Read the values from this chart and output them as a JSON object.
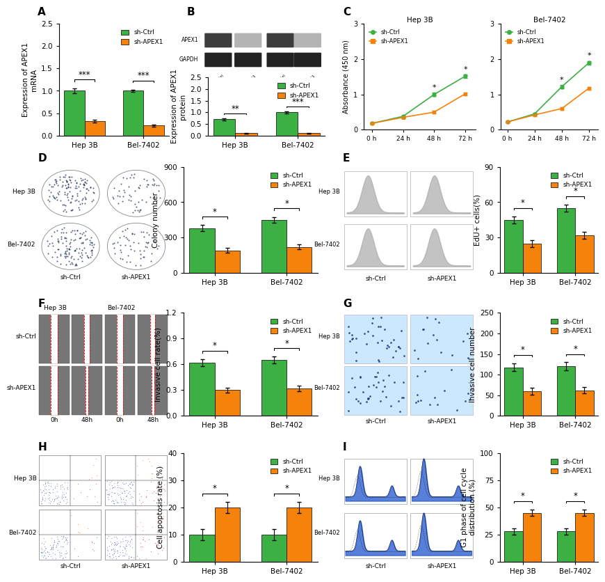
{
  "panel_A": {
    "ylabel": "Expression of APEX1\nmRNA",
    "groups": [
      "Hep 3B",
      "Bel-7402"
    ],
    "ctrl_vals": [
      1.0,
      1.0
    ],
    "apex1_vals": [
      0.32,
      0.22
    ],
    "ctrl_err": [
      0.05,
      0.03
    ],
    "apex1_err": [
      0.03,
      0.02
    ],
    "ylim": [
      0,
      2.5
    ],
    "yticks": [
      0.0,
      0.5,
      1.0,
      1.5,
      2.0,
      2.5
    ],
    "sig": [
      "***",
      "***"
    ]
  },
  "panel_B": {
    "ylabel": "Expression of APEX1\nprotein",
    "groups": [
      "Hep 3B",
      "Bel-7402"
    ],
    "ctrl_vals": [
      0.7,
      1.0
    ],
    "apex1_vals": [
      0.1,
      0.1
    ],
    "ctrl_err": [
      0.05,
      0.04
    ],
    "apex1_err": [
      0.02,
      0.02
    ],
    "ylim": [
      0,
      2.5
    ],
    "yticks": [
      0.0,
      0.5,
      1.0,
      1.5,
      2.0,
      2.5
    ],
    "sig": [
      "**",
      "***"
    ]
  },
  "panel_C_hep": {
    "title": "Hep 3B",
    "ylabel": "Absorbance (450 nm)",
    "timepoints": [
      0,
      24,
      48,
      72
    ],
    "ctrl_vals": [
      0.18,
      0.38,
      1.0,
      1.52
    ],
    "apex1_vals": [
      0.18,
      0.35,
      0.5,
      1.02
    ],
    "ctrl_err": [
      0.02,
      0.03,
      0.05,
      0.05
    ],
    "apex1_err": [
      0.02,
      0.03,
      0.04,
      0.04
    ],
    "ylim": [
      0,
      3
    ],
    "yticks": [
      0,
      1,
      2,
      3
    ],
    "sig_points": [
      48,
      72
    ],
    "sig_labels": [
      "*",
      "*"
    ]
  },
  "panel_C_bel": {
    "title": "Bel-7402",
    "ylabel": "Absorbance (450 nm)",
    "timepoints": [
      0,
      24,
      48,
      72
    ],
    "ctrl_vals": [
      0.22,
      0.45,
      1.22,
      1.9
    ],
    "apex1_vals": [
      0.22,
      0.42,
      0.6,
      1.18
    ],
    "ctrl_err": [
      0.02,
      0.03,
      0.05,
      0.05
    ],
    "apex1_err": [
      0.02,
      0.03,
      0.04,
      0.04
    ],
    "ylim": [
      0,
      3
    ],
    "yticks": [
      0,
      1,
      2,
      3
    ],
    "sig_points": [
      48,
      72
    ],
    "sig_labels": [
      "*",
      "*"
    ]
  },
  "panel_D": {
    "ylabel": "Colony number",
    "groups": [
      "Hep 3B",
      "Bel-7402"
    ],
    "ctrl_vals": [
      380,
      450
    ],
    "apex1_vals": [
      190,
      220
    ],
    "ctrl_err": [
      25,
      25
    ],
    "apex1_err": [
      20,
      20
    ],
    "ylim": [
      0,
      900
    ],
    "yticks": [
      0,
      300,
      600,
      900
    ],
    "sig": [
      "*",
      "*"
    ]
  },
  "panel_E": {
    "ylabel": "EdU+ cells(%)",
    "groups": [
      "Hep 3B",
      "Bel-7402"
    ],
    "ctrl_vals": [
      45,
      55
    ],
    "apex1_vals": [
      25,
      32
    ],
    "ctrl_err": [
      3,
      3
    ],
    "apex1_err": [
      3,
      3
    ],
    "ylim": [
      0,
      90
    ],
    "yticks": [
      0,
      30,
      60,
      90
    ],
    "sig": [
      "*",
      "*"
    ]
  },
  "panel_F": {
    "ylabel": "Invasive cell rate(%)",
    "groups": [
      "Hep 3B",
      "Bel-7402"
    ],
    "ctrl_vals": [
      0.62,
      0.65
    ],
    "apex1_vals": [
      0.3,
      0.32
    ],
    "ctrl_err": [
      0.04,
      0.04
    ],
    "apex1_err": [
      0.03,
      0.03
    ],
    "ylim": [
      0,
      1.2
    ],
    "yticks": [
      0.0,
      0.3,
      0.6,
      0.9,
      1.2
    ],
    "sig": [
      "*",
      "*"
    ]
  },
  "panel_G": {
    "ylabel": "Invasive cell number",
    "groups": [
      "Hep 3B",
      "Bel-7402"
    ],
    "ctrl_vals": [
      118,
      120
    ],
    "apex1_vals": [
      60,
      62
    ],
    "ctrl_err": [
      10,
      10
    ],
    "apex1_err": [
      8,
      8
    ],
    "ylim": [
      0,
      250
    ],
    "yticks": [
      0,
      50,
      100,
      150,
      200,
      250
    ],
    "sig": [
      "*",
      "*"
    ]
  },
  "panel_H": {
    "ylabel": "Cell apoptosis rate (%)",
    "groups": [
      "Hep 3B",
      "Bel-7402"
    ],
    "ctrl_vals": [
      10,
      10
    ],
    "apex1_vals": [
      20,
      20
    ],
    "ctrl_err": [
      2,
      2
    ],
    "apex1_err": [
      2,
      2
    ],
    "ylim": [
      0,
      40
    ],
    "yticks": [
      0,
      10,
      20,
      30,
      40
    ],
    "sig": [
      "*",
      "*"
    ]
  },
  "panel_I": {
    "ylabel": "G1 phase of cell cycle\ndistribution (%)",
    "groups": [
      "Hep 3B",
      "Bel-7402"
    ],
    "ctrl_vals": [
      28,
      28
    ],
    "apex1_vals": [
      45,
      45
    ],
    "ctrl_err": [
      3,
      3
    ],
    "apex1_err": [
      3,
      3
    ],
    "ylim": [
      0,
      100
    ],
    "yticks": [
      0,
      25,
      50,
      75,
      100
    ],
    "sig": [
      "*",
      "*"
    ]
  },
  "colors": {
    "green": "#3cb043",
    "orange": "#f5820a"
  }
}
